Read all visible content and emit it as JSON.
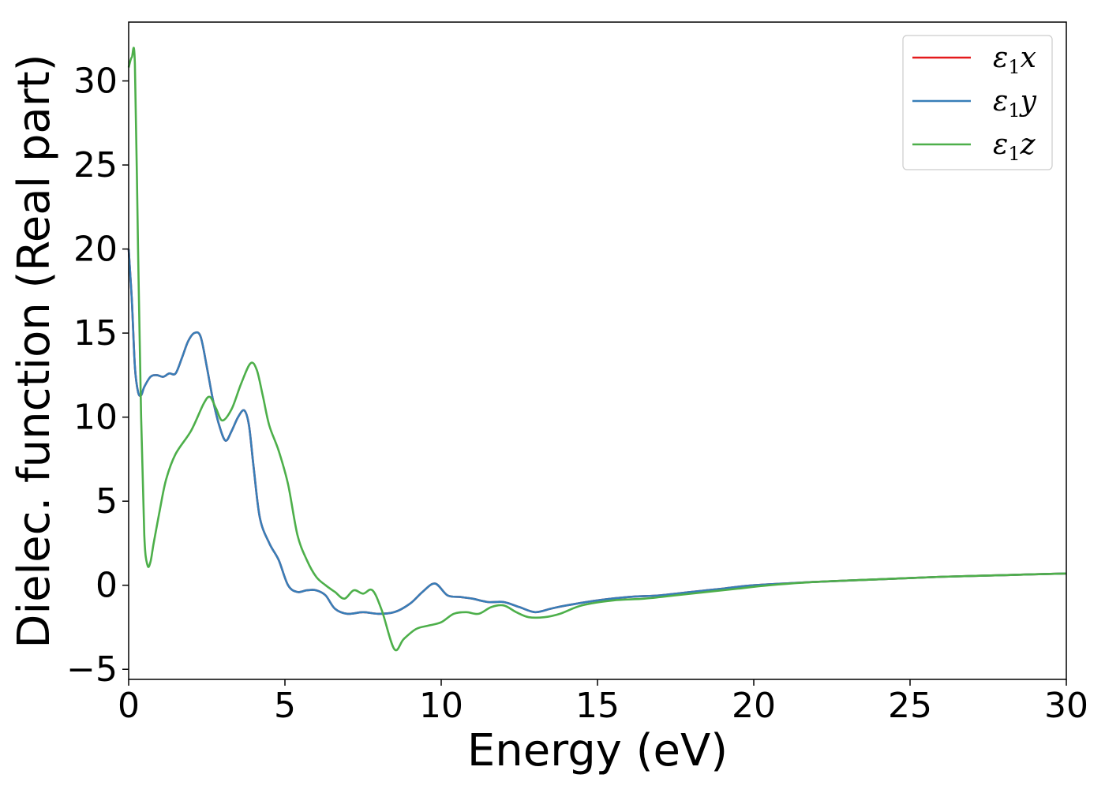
{
  "chart_data": {
    "type": "line",
    "title": "",
    "xlabel": "Energy (eV)",
    "ylabel": "Dielec. function (Real part)",
    "xlim": [
      0,
      30
    ],
    "ylim": [
      -5.6,
      33.5
    ],
    "xticks": [
      0,
      5,
      10,
      15,
      20,
      25,
      30
    ],
    "xtick_labels": [
      "0",
      "5",
      "10",
      "15",
      "20",
      "25",
      "30"
    ],
    "yticks": [
      -5,
      0,
      5,
      10,
      15,
      20,
      25,
      30
    ],
    "ytick_labels": [
      "−5",
      "0",
      "5",
      "10",
      "15",
      "20",
      "25",
      "30"
    ],
    "grid": false,
    "legend_position": "top-right",
    "series": [
      {
        "name": "ε1x",
        "color": "#e41a1c",
        "x": [
          0,
          0.1,
          0.2,
          0.3,
          0.4,
          0.5,
          0.7,
          0.9,
          1.1,
          1.3,
          1.5,
          1.7,
          1.9,
          2.1,
          2.3,
          2.5,
          2.7,
          2.9,
          3.1,
          3.3,
          3.5,
          3.7,
          3.85,
          4.0,
          4.2,
          4.5,
          4.8,
          5.1,
          5.4,
          5.7,
          6.0,
          6.3,
          6.6,
          7.0,
          7.5,
          8.0,
          8.5,
          9.0,
          9.4,
          9.8,
          10.2,
          10.6,
          11.0,
          11.5,
          12.0,
          12.5,
          13.0,
          13.5,
          14.0,
          15.0,
          16.0,
          17.0,
          18.0,
          19.0,
          20.0,
          22.0,
          24.0,
          26.0,
          28.0,
          30.0
        ],
        "y": [
          20.0,
          17.0,
          13.0,
          11.5,
          11.3,
          11.8,
          12.4,
          12.5,
          12.4,
          12.6,
          12.6,
          13.5,
          14.5,
          15.0,
          14.8,
          13.0,
          11.0,
          9.5,
          8.6,
          9.2,
          10.0,
          10.4,
          9.5,
          7.0,
          4.0,
          2.5,
          1.5,
          0.0,
          -0.4,
          -0.3,
          -0.3,
          -0.6,
          -1.4,
          -1.7,
          -1.6,
          -1.7,
          -1.6,
          -1.1,
          -0.4,
          0.1,
          -0.6,
          -0.7,
          -0.8,
          -1.0,
          -1.0,
          -1.3,
          -1.6,
          -1.4,
          -1.2,
          -0.9,
          -0.7,
          -0.6,
          -0.4,
          -0.2,
          0.0,
          0.2,
          0.35,
          0.5,
          0.6,
          0.7
        ]
      },
      {
        "name": "ε1y",
        "color": "#377eb8",
        "x": [
          0,
          0.1,
          0.2,
          0.3,
          0.4,
          0.5,
          0.7,
          0.9,
          1.1,
          1.3,
          1.5,
          1.7,
          1.9,
          2.1,
          2.3,
          2.5,
          2.7,
          2.9,
          3.1,
          3.3,
          3.5,
          3.7,
          3.85,
          4.0,
          4.2,
          4.5,
          4.8,
          5.1,
          5.4,
          5.7,
          6.0,
          6.3,
          6.6,
          7.0,
          7.5,
          8.0,
          8.5,
          9.0,
          9.4,
          9.8,
          10.2,
          10.6,
          11.0,
          11.5,
          12.0,
          12.5,
          13.0,
          13.5,
          14.0,
          15.0,
          16.0,
          17.0,
          18.0,
          19.0,
          20.0,
          22.0,
          24.0,
          26.0,
          28.0,
          30.0
        ],
        "y": [
          20.0,
          17.0,
          13.0,
          11.5,
          11.3,
          11.8,
          12.4,
          12.5,
          12.4,
          12.6,
          12.6,
          13.5,
          14.5,
          15.0,
          14.8,
          13.0,
          11.0,
          9.5,
          8.6,
          9.2,
          10.0,
          10.4,
          9.5,
          7.0,
          4.0,
          2.5,
          1.5,
          0.0,
          -0.4,
          -0.3,
          -0.3,
          -0.6,
          -1.4,
          -1.7,
          -1.6,
          -1.7,
          -1.6,
          -1.1,
          -0.4,
          0.1,
          -0.6,
          -0.7,
          -0.8,
          -1.0,
          -1.0,
          -1.3,
          -1.6,
          -1.4,
          -1.2,
          -0.9,
          -0.7,
          -0.6,
          -0.4,
          -0.2,
          0.0,
          0.2,
          0.35,
          0.5,
          0.6,
          0.7
        ]
      },
      {
        "name": "ε1z",
        "color": "#4daf4a",
        "x": [
          0,
          0.1,
          0.2,
          0.3,
          0.4,
          0.5,
          0.6,
          0.7,
          0.8,
          1.0,
          1.2,
          1.5,
          2.0,
          2.4,
          2.6,
          2.8,
          3.0,
          3.3,
          3.6,
          3.9,
          4.1,
          4.3,
          4.5,
          4.8,
          5.1,
          5.4,
          5.7,
          6.0,
          6.3,
          6.6,
          6.9,
          7.2,
          7.5,
          7.8,
          8.1,
          8.5,
          8.8,
          9.2,
          9.6,
          10.0,
          10.4,
          10.8,
          11.2,
          11.6,
          12.0,
          12.4,
          12.8,
          13.3,
          13.8,
          14.5,
          15.5,
          16.5,
          17.5,
          18.5,
          19.5,
          20.5,
          22.0,
          24.0,
          26.0,
          28.0,
          30.0
        ],
        "y": [
          30.8,
          31.4,
          31.0,
          20.0,
          10.0,
          3.0,
          1.2,
          1.4,
          2.5,
          4.5,
          6.3,
          7.8,
          9.2,
          10.8,
          11.2,
          10.5,
          9.8,
          10.5,
          12.0,
          13.2,
          12.8,
          11.2,
          9.5,
          8.0,
          6.0,
          3.0,
          1.5,
          0.5,
          0.0,
          -0.4,
          -0.8,
          -0.3,
          -0.5,
          -0.3,
          -1.5,
          -3.8,
          -3.2,
          -2.6,
          -2.4,
          -2.2,
          -1.7,
          -1.6,
          -1.7,
          -1.3,
          -1.2,
          -1.6,
          -1.9,
          -1.9,
          -1.7,
          -1.2,
          -0.9,
          -0.8,
          -0.6,
          -0.4,
          -0.2,
          0.0,
          0.2,
          0.35,
          0.5,
          0.6,
          0.7
        ]
      }
    ],
    "legend": [
      {
        "symbol": "ε",
        "sub": "1",
        "var": "x",
        "color": "#e41a1c"
      },
      {
        "symbol": "ε",
        "sub": "1",
        "var": "y",
        "color": "#377eb8"
      },
      {
        "symbol": "ε",
        "sub": "1",
        "var": "z",
        "color": "#4daf4a"
      }
    ]
  }
}
